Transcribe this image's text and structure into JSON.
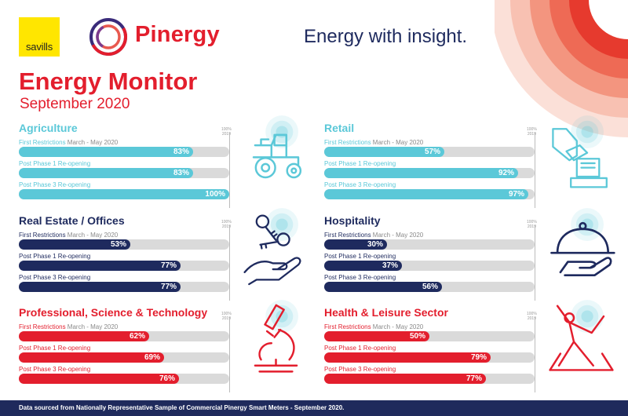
{
  "header": {
    "savills_logo": "savills",
    "brand_name": "Pinergy",
    "tagline": "Energy with insight.",
    "title": "Energy Monitor",
    "subtitle": "September 2020"
  },
  "baseline_label": [
    "100%",
    "2019"
  ],
  "colors": {
    "red": "#e31e2d",
    "navy": "#1e2a5e",
    "teal": "#5bc8d8",
    "track": "#dadada"
  },
  "sectors": [
    {
      "name": "Agriculture",
      "color": "#5bc8d8",
      "icon": "tractor-icon",
      "rows": [
        {
          "label": "First Restrictions",
          "note": "March - May 2020",
          "value": 83,
          "text": "83%"
        },
        {
          "label": "Post Phase 1 Re-opening",
          "note": "",
          "value": 83,
          "text": "83%"
        },
        {
          "label": "Post Phase 3 Re-opening",
          "note": "",
          "value": 100,
          "text": "100%"
        }
      ]
    },
    {
      "name": "Retail",
      "color": "#5bc8d8",
      "icon": "shopping-card-icon",
      "rows": [
        {
          "label": "First Restrictions",
          "note": "March - May 2020",
          "value": 57,
          "text": "57%"
        },
        {
          "label": "Post Phase 1 Re-opening",
          "note": "",
          "value": 92,
          "text": "92%"
        },
        {
          "label": "Post Phase 3 Re-opening",
          "note": "",
          "value": 97,
          "text": "97%"
        }
      ]
    },
    {
      "name": "Real Estate / Offices",
      "color": "#1e2a5e",
      "icon": "keys-in-hand-icon",
      "rows": [
        {
          "label": "First Restrictions",
          "note": "March - May 2020",
          "value": 53,
          "text": "53%"
        },
        {
          "label": "Post Phase 1 Re-opening",
          "note": "",
          "value": 77,
          "text": "77%"
        },
        {
          "label": "Post Phase 3 Re-opening",
          "note": "",
          "value": 77,
          "text": "77%"
        }
      ]
    },
    {
      "name": "Hospitality",
      "color": "#1e2a5e",
      "icon": "serving-cloche-icon",
      "rows": [
        {
          "label": "First Restrictions",
          "note": "March - May 2020",
          "value": 30,
          "text": "30%"
        },
        {
          "label": "Post Phase 1 Re-opening",
          "note": "",
          "value": 37,
          "text": "37%"
        },
        {
          "label": "Post Phase 3 Re-opening",
          "note": "",
          "value": 56,
          "text": "56%"
        }
      ]
    },
    {
      "name": "Professional, Science & Technology",
      "color": "#e31e2d",
      "icon": "microscope-icon",
      "rows": [
        {
          "label": "First Restrictions",
          "note": "March - May 2020",
          "value": 62,
          "text": "62%"
        },
        {
          "label": "Post Phase 1 Re-opening",
          "note": "",
          "value": 69,
          "text": "69%"
        },
        {
          "label": "Post Phase 3 Re-opening",
          "note": "",
          "value": 76,
          "text": "76%"
        }
      ]
    },
    {
      "name": "Health & Leisure Sector",
      "color": "#e31e2d",
      "icon": "exercise-pose-icon",
      "rows": [
        {
          "label": "First Restrictions",
          "note": "March - May 2020",
          "value": 50,
          "text": "50%"
        },
        {
          "label": "Post Phase 1 Re-opening",
          "note": "",
          "value": 79,
          "text": "79%"
        },
        {
          "label": "Post Phase 3 Re-opening",
          "note": "",
          "value": 77,
          "text": "77%"
        }
      ]
    }
  ],
  "footer": "Data sourced from Nationally Representative Sample of Commercial Pinergy Smart Meters - September 2020."
}
